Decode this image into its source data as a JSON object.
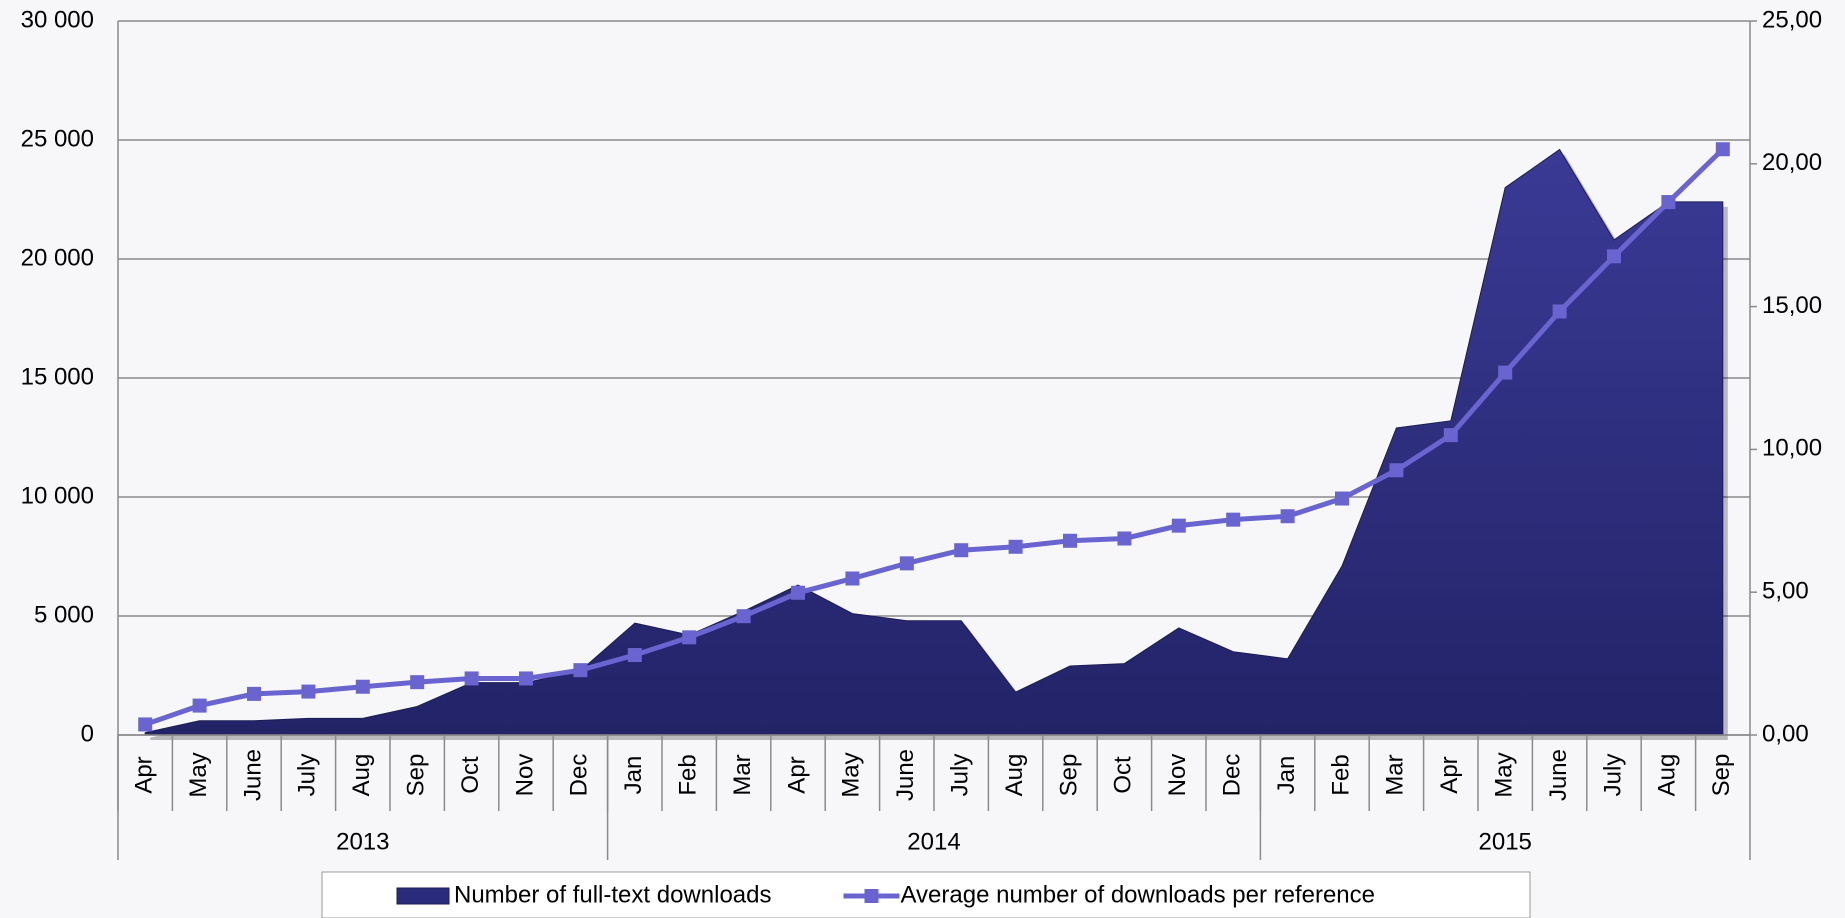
{
  "chart_data": {
    "type": "area_line",
    "groups": [
      {
        "label": "2013",
        "categories": [
          "Apr",
          "May",
          "June",
          "July",
          "Aug",
          "Sep",
          "Oct",
          "Nov",
          "Dec"
        ]
      },
      {
        "label": "2014",
        "categories": [
          "Jan",
          "Feb",
          "Mar",
          "Apr",
          "May",
          "June",
          "July",
          "Aug",
          "Sep",
          "Oct",
          "Nov",
          "Dec"
        ]
      },
      {
        "label": "2015",
        "categories": [
          "Jan",
          "Feb",
          "Mar",
          "Apr",
          "May",
          "June",
          "July",
          "Aug",
          "Sep"
        ]
      }
    ],
    "series": [
      {
        "name": "Number of full-text downloads",
        "kind": "area",
        "color": "#2b2b7c",
        "values": [
          100,
          600,
          600,
          700,
          700,
          1200,
          2200,
          2200,
          2700,
          4700,
          4200,
          5200,
          6300,
          5100,
          4800,
          4800,
          1800,
          2900,
          3000,
          4500,
          3500,
          3200,
          7100,
          12900,
          13200,
          23000,
          24600,
          20800,
          22400,
          22400
        ]
      },
      {
        "name": "Average number of downloads per reference",
        "kind": "line",
        "axis": "y2",
        "color": "#6a64d0",
        "values": [
          0.37,
          1.03,
          1.44,
          1.52,
          1.69,
          1.85,
          1.98,
          1.98,
          2.27,
          2.8,
          3.42,
          4.16,
          4.98,
          5.48,
          6.01,
          6.47,
          6.59,
          6.8,
          6.88,
          7.33,
          7.54,
          7.66,
          8.28,
          9.27,
          10.5,
          12.69,
          14.83,
          16.76,
          18.66,
          20.51
        ]
      }
    ],
    "ylim": [
      0,
      30000
    ],
    "yticks": [
      {
        "value": 0,
        "label": "0"
      },
      {
        "value": 5000,
        "label": "5 000"
      },
      {
        "value": 10000,
        "label": "10 000"
      },
      {
        "value": 15000,
        "label": "15 000"
      },
      {
        "value": 20000,
        "label": "20 000"
      },
      {
        "value": 25000,
        "label": "25 000"
      },
      {
        "value": 30000,
        "label": "30 000"
      }
    ],
    "y2lim": [
      0,
      25
    ],
    "y2ticks": [
      {
        "value": 0,
        "label": "0,00"
      },
      {
        "value": 5,
        "label": "5,00"
      },
      {
        "value": 10,
        "label": "10,00"
      },
      {
        "value": 15,
        "label": "15,00"
      },
      {
        "value": 20,
        "label": "20,00"
      },
      {
        "value": 25,
        "label": "25,00"
      }
    ],
    "grid": true,
    "legend": "bottom"
  }
}
